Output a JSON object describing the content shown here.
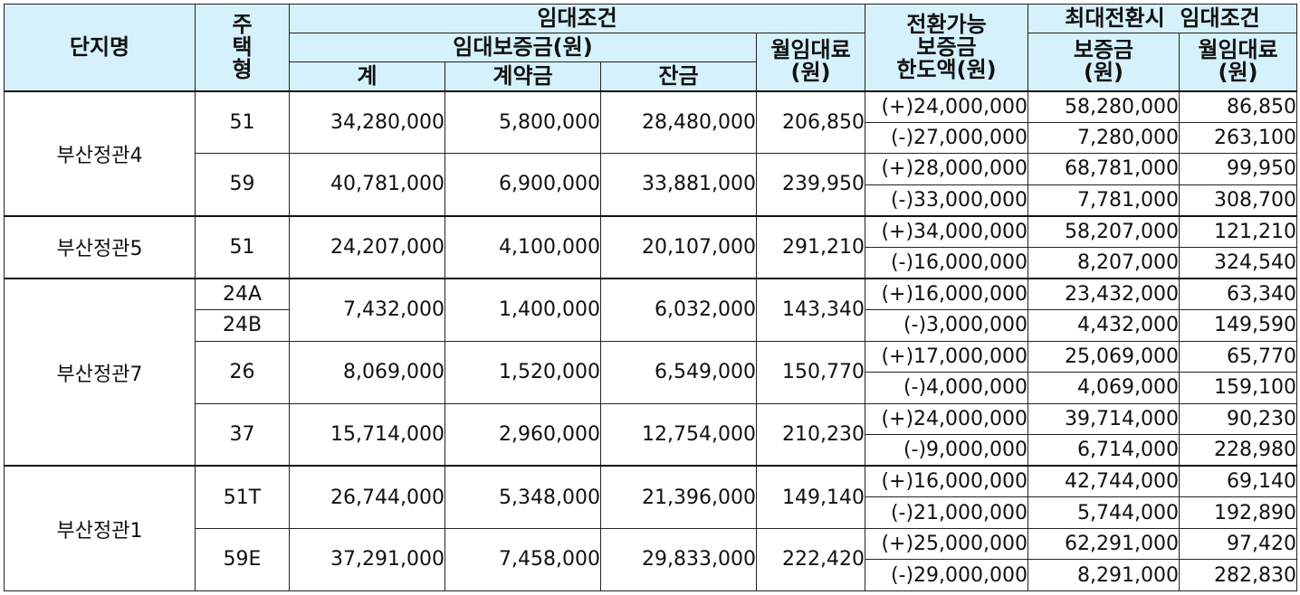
{
  "headers": {
    "complex": "단지명",
    "type_chars": [
      "주",
      "택",
      "형"
    ],
    "rent_terms": "임대조건",
    "deposit_won": "임대보증금(원)",
    "total": "계",
    "contract": "계약금",
    "balance": "잔금",
    "monthly_rent_line1": "월임대료",
    "monthly_rent_line2": "(원)",
    "convertible_line1": "전환가능",
    "convertible_line2": "보증금",
    "convertible_line3": "한도액(원)",
    "max_conv_terms": "최대전환시  임대조건",
    "max_deposit_line1": "보증금",
    "max_deposit_line2": "(원)",
    "max_rent_line1": "월임대료",
    "max_rent_line2": "(원)"
  },
  "groups": [
    {
      "complex": "부산정관4",
      "types": [
        {
          "type": "51",
          "total": "34,280,000",
          "contract": "5,800,000",
          "balance": "28,480,000",
          "rent": "206,850",
          "conversions": [
            {
              "limit": "(+)24,000,000",
              "deposit": "58,280,000",
              "rent": "86,850"
            },
            {
              "limit": "(-)27,000,000",
              "deposit": "7,280,000",
              "rent": "263,100"
            }
          ]
        },
        {
          "type": "59",
          "total": "40,781,000",
          "contract": "6,900,000",
          "balance": "33,881,000",
          "rent": "239,950",
          "conversions": [
            {
              "limit": "(+)28,000,000",
              "deposit": "68,781,000",
              "rent": "99,950"
            },
            {
              "limit": "(-)33,000,000",
              "deposit": "7,781,000",
              "rent": "308,700"
            }
          ]
        }
      ]
    },
    {
      "complex": "부산정관5",
      "types": [
        {
          "type": "51",
          "total": "24,207,000",
          "contract": "4,100,000",
          "balance": "20,107,000",
          "rent": "291,210",
          "conversions": [
            {
              "limit": "(+)34,000,000",
              "deposit": "58,207,000",
              "rent": "121,210"
            },
            {
              "limit": "(-)16,000,000",
              "deposit": "8,207,000",
              "rent": "324,540"
            }
          ]
        }
      ]
    },
    {
      "complex": "부산정관7",
      "types": [
        {
          "type_a": "24A",
          "type_b": "24B",
          "total": "7,432,000",
          "contract": "1,400,000",
          "balance": "6,032,000",
          "rent": "143,340",
          "conversions": [
            {
              "limit": "(+)16,000,000",
              "deposit": "23,432,000",
              "rent": "63,340"
            },
            {
              "limit": "(-)3,000,000",
              "deposit": "4,432,000",
              "rent": "149,590"
            }
          ]
        },
        {
          "type": "26",
          "total": "8,069,000",
          "contract": "1,520,000",
          "balance": "6,549,000",
          "rent": "150,770",
          "conversions": [
            {
              "limit": "(+)17,000,000",
              "deposit": "25,069,000",
              "rent": "65,770"
            },
            {
              "limit": "(-)4,000,000",
              "deposit": "4,069,000",
              "rent": "159,100"
            }
          ]
        },
        {
          "type": "37",
          "total": "15,714,000",
          "contract": "2,960,000",
          "balance": "12,754,000",
          "rent": "210,230",
          "conversions": [
            {
              "limit": "(+)24,000,000",
              "deposit": "39,714,000",
              "rent": "90,230"
            },
            {
              "limit": "(-)9,000,000",
              "deposit": "6,714,000",
              "rent": "228,980"
            }
          ]
        }
      ]
    },
    {
      "complex": "부산정관1",
      "types": [
        {
          "type": "51T",
          "total": "26,744,000",
          "contract": "5,348,000",
          "balance": "21,396,000",
          "rent": "149,140",
          "conversions": [
            {
              "limit": "(+)16,000,000",
              "deposit": "42,744,000",
              "rent": "69,140"
            },
            {
              "limit": "(-)21,000,000",
              "deposit": "5,744,000",
              "rent": "192,890"
            }
          ]
        },
        {
          "type": "59E",
          "total": "37,291,000",
          "contract": "7,458,000",
          "balance": "29,833,000",
          "rent": "222,420",
          "conversions": [
            {
              "limit": "(+)25,000,000",
              "deposit": "62,291,000",
              "rent": "97,420"
            },
            {
              "limit": "(-)29,000,000",
              "deposit": "8,291,000",
              "rent": "282,830"
            }
          ]
        }
      ]
    }
  ]
}
